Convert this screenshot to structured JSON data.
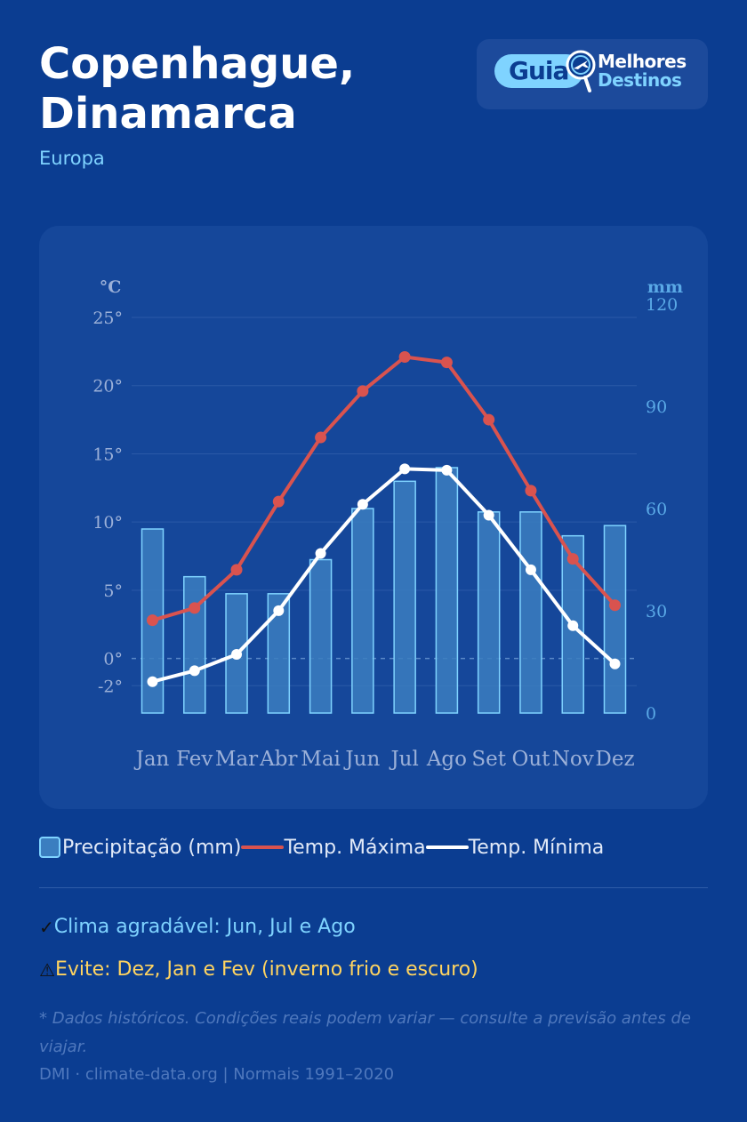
{
  "header": {
    "title": "Copenhague, Dinamarca",
    "subtitle": "Europa"
  },
  "logo": {
    "guia": "Guia",
    "line1": "Melhores",
    "line2": "Destinos",
    "icon": "airplane-magnifier-icon"
  },
  "chart_data": {
    "type": "bar+line",
    "categories": [
      "Jan",
      "Fev",
      "Mar",
      "Abr",
      "Mai",
      "Jun",
      "Jul",
      "Ago",
      "Set",
      "Out",
      "Nov",
      "Dez"
    ],
    "series": [
      {
        "name": "Precipitação (mm)",
        "type": "bar",
        "axis": "right",
        "values": [
          54,
          40,
          35,
          35,
          45,
          60,
          68,
          72,
          59,
          59,
          52,
          55
        ]
      },
      {
        "name": "Temp. Máxima",
        "type": "line",
        "axis": "left",
        "values": [
          2.8,
          3.7,
          6.5,
          11.5,
          16.2,
          19.6,
          22.1,
          21.7,
          17.5,
          12.3,
          7.3,
          3.9
        ]
      },
      {
        "name": "Temp. Mínima",
        "type": "line",
        "axis": "left",
        "values": [
          -1.7,
          -0.9,
          0.3,
          3.5,
          7.7,
          11.3,
          13.9,
          13.8,
          10.5,
          6.5,
          2.4,
          -0.4
        ]
      }
    ],
    "left_axis": {
      "label": "°C",
      "ticks": [
        "25°",
        "20°",
        "15°",
        "10°",
        "5°",
        "0°",
        "-2°"
      ],
      "tick_values": [
        25,
        20,
        15,
        10,
        5,
        0,
        -2
      ],
      "range": [
        -4,
        25
      ]
    },
    "right_axis": {
      "label": "mm",
      "ticks": [
        "120",
        "90",
        "60",
        "30",
        "0"
      ],
      "tick_values": [
        120,
        90,
        60,
        30,
        0
      ],
      "range": [
        0,
        120
      ]
    },
    "colors": {
      "bar_fill": "#3b7ec0",
      "bar_stroke": "#7fd3ff",
      "max_line": "#d9534f",
      "min_line": "#ffffff",
      "left_tick": "#9bb0d8",
      "right_tick": "#5aa9e6",
      "grid": "#2b5aa8",
      "zero_line": "#5a89c8"
    }
  },
  "legend": {
    "precip": "Precipitação (mm)",
    "tmax": "Temp. Máxima",
    "tmin": "Temp. Mínima"
  },
  "notes": {
    "good_icon": "✓",
    "good": "Clima agradável: Jun, Jul e Ago",
    "bad_icon": "⚠",
    "bad": "Evite: Dez, Jan e Fev (inverno frio e escuro)"
  },
  "footer": {
    "disclaimer": "* Dados históricos. Condições reais podem variar — consulte a previsão antes de viajar.",
    "source": "DMI · climate-data.org  |  Normais 1991–2020"
  }
}
